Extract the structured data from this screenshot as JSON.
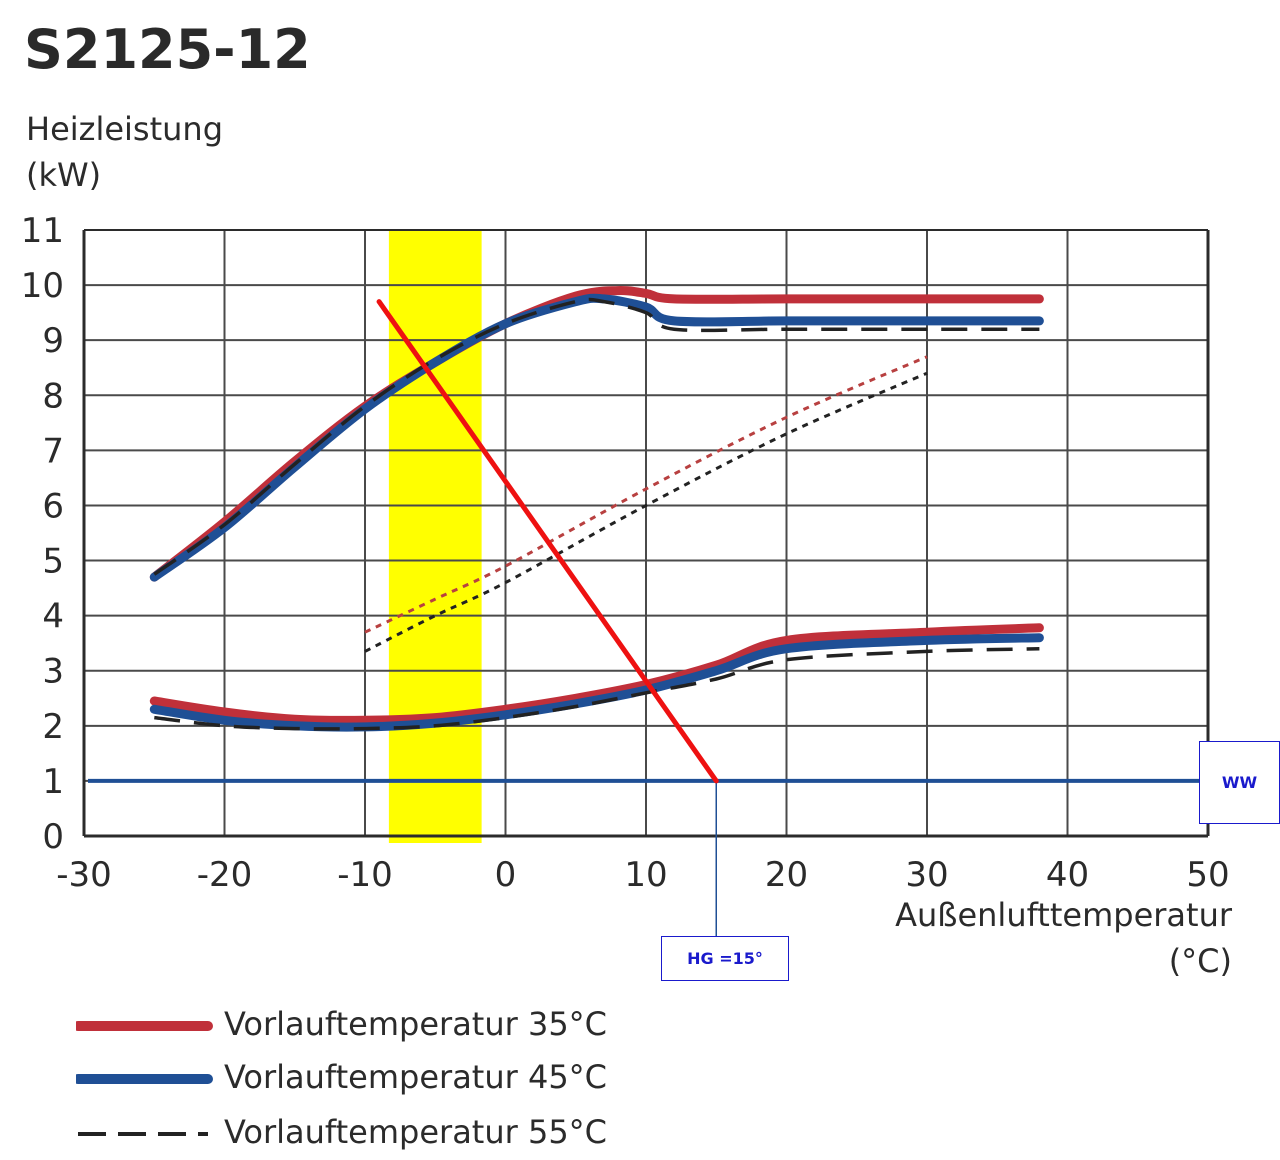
{
  "title": "S2125-12",
  "ylabel_line1": "Heizleistung",
  "ylabel_line2": "(kW)",
  "xlabel_line1": "Außenlufttemperatur",
  "xlabel_line2": "(°C)",
  "annotations": {
    "ww_label": "WW",
    "hg_label": "HG =15°"
  },
  "legend": [
    {
      "label": "Vorlauftemperatur 35°C",
      "color": "#c0303a",
      "style": "solid"
    },
    {
      "label": "Vorlauftemperatur 45°C",
      "color": "#1f4f95",
      "style": "solid"
    },
    {
      "label": "Vorlauftemperatur 55°C",
      "color": "#222222",
      "style": "dashed"
    }
  ],
  "chart_data": {
    "type": "line",
    "title": "S2125-12",
    "xlabel": "Außenlufttemperatur (°C)",
    "ylabel": "Heizleistung (kW)",
    "xlim": [
      -30,
      50
    ],
    "ylim": [
      0,
      11
    ],
    "xticks": [
      "-30",
      "-20",
      "-10",
      "0",
      "10",
      "20",
      "30",
      "40",
      "50"
    ],
    "yticks": [
      "0",
      "1",
      "2",
      "3",
      "4",
      "5",
      "6",
      "7",
      "8",
      "9",
      "10",
      "11"
    ],
    "grid": true,
    "legend_position": "bottom-left",
    "series": [
      {
        "name": "Vorlauftemperatur 35°C",
        "group": "max",
        "color": "#c0303a",
        "x": [
          -25,
          -20,
          -15,
          -10,
          -5,
          0,
          5,
          8,
          10,
          12,
          20,
          30,
          38
        ],
        "y": [
          4.7,
          5.7,
          6.8,
          7.8,
          8.6,
          9.3,
          9.8,
          9.9,
          9.85,
          9.75,
          9.75,
          9.75,
          9.75
        ]
      },
      {
        "name": "Vorlauftemperatur 45°C",
        "group": "max",
        "color": "#1f4f95",
        "x": [
          -25,
          -20,
          -15,
          -10,
          -5,
          0,
          5,
          7,
          10,
          12,
          20,
          30,
          38
        ],
        "y": [
          4.7,
          5.6,
          6.7,
          7.75,
          8.6,
          9.3,
          9.7,
          9.75,
          9.6,
          9.35,
          9.35,
          9.35,
          9.35
        ]
      },
      {
        "name": "Vorlauftemperatur 55°C",
        "group": "max",
        "color": "#222222",
        "x": [
          -25,
          -20,
          -15,
          -10,
          -5,
          0,
          5,
          7,
          10,
          12,
          20,
          30,
          38
        ],
        "y": [
          4.75,
          5.65,
          6.75,
          7.8,
          8.65,
          9.3,
          9.7,
          9.7,
          9.5,
          9.2,
          9.2,
          9.2,
          9.2
        ]
      },
      {
        "name": "Vorlauftemperatur 35°C",
        "group": "min",
        "color": "#c0303a",
        "x": [
          -25,
          -20,
          -15,
          -10,
          -5,
          0,
          5,
          10,
          15,
          20,
          30,
          38
        ],
        "y": [
          2.45,
          2.25,
          2.12,
          2.1,
          2.15,
          2.3,
          2.5,
          2.75,
          3.1,
          3.55,
          3.7,
          3.78
        ]
      },
      {
        "name": "Vorlauftemperatur 45°C",
        "group": "min",
        "color": "#1f4f95",
        "x": [
          -25,
          -20,
          -15,
          -10,
          -5,
          0,
          5,
          10,
          15,
          20,
          30,
          38
        ],
        "y": [
          2.3,
          2.1,
          2.0,
          1.98,
          2.05,
          2.2,
          2.4,
          2.65,
          3.0,
          3.4,
          3.55,
          3.6
        ]
      },
      {
        "name": "Vorlauftemperatur 55°C",
        "group": "min",
        "color": "#222222",
        "x": [
          -25,
          -20,
          -15,
          -10,
          -5,
          0,
          5,
          10,
          15,
          20,
          30,
          38
        ],
        "y": [
          2.15,
          2.0,
          1.95,
          1.95,
          2.0,
          2.15,
          2.35,
          2.6,
          2.85,
          3.2,
          3.35,
          3.4
        ]
      },
      {
        "name": "Vorlauftemperatur 35°C",
        "group": "dotted",
        "color": "#b84040",
        "x": [
          -10,
          -5,
          0,
          10,
          20,
          30
        ],
        "y": [
          3.7,
          4.3,
          4.9,
          6.3,
          7.6,
          8.7
        ]
      },
      {
        "name": "Vorlauftemperatur 55°C",
        "group": "dotted",
        "color": "#222222",
        "x": [
          -10,
          -5,
          0,
          10,
          20,
          30
        ],
        "y": [
          3.35,
          4.0,
          4.6,
          6.0,
          7.3,
          8.4
        ]
      }
    ],
    "overlays": {
      "yellow_band": {
        "x_from": -8.3,
        "x_to": -1.7
      },
      "ww_line": {
        "y": 1.0,
        "color": "#1f4f95"
      },
      "heating_line": {
        "x1": -9,
        "y1": 9.7,
        "x2": 15,
        "y2": 1.0,
        "color": "#ee1111"
      },
      "hg_marker": {
        "x": 15
      }
    }
  }
}
